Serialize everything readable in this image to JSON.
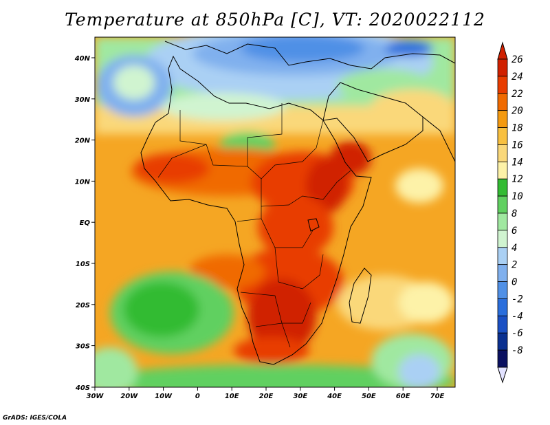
{
  "title": "Temperature at 850hPa [C], VT: 2020022112",
  "credit": "GrADS: IGES/COLA",
  "x_axis": {
    "labels": [
      "30W",
      "20W",
      "10W",
      "0",
      "10E",
      "20E",
      "30E",
      "40E",
      "50E",
      "60E",
      "70E"
    ]
  },
  "y_axis": {
    "labels": [
      "40N",
      "30N",
      "20N",
      "10N",
      "EQ",
      "10S",
      "20S",
      "30S",
      "40S"
    ]
  },
  "colorbar": {
    "labels": [
      "26",
      "24",
      "22",
      "20",
      "18",
      "16",
      "14",
      "12",
      "10",
      "8",
      "6",
      "4",
      "2",
      "0",
      "-2",
      "-4",
      "-6",
      "-8"
    ],
    "colors": [
      "#d02000",
      "#e83c00",
      "#f06a00",
      "#f49a10",
      "#f8c040",
      "#fad87a",
      "#fdf2a8",
      "#33bb33",
      "#60d060",
      "#a0e8a0",
      "#d0f4d0",
      "#aad0f4",
      "#80b0ee",
      "#5090e6",
      "#2a6edc",
      "#1a50c4",
      "#0a3090",
      "#0a1060"
    ]
  },
  "palette": {
    "over": "#d02000",
    "under": "#e2e2ff",
    "border": "#000000"
  }
}
